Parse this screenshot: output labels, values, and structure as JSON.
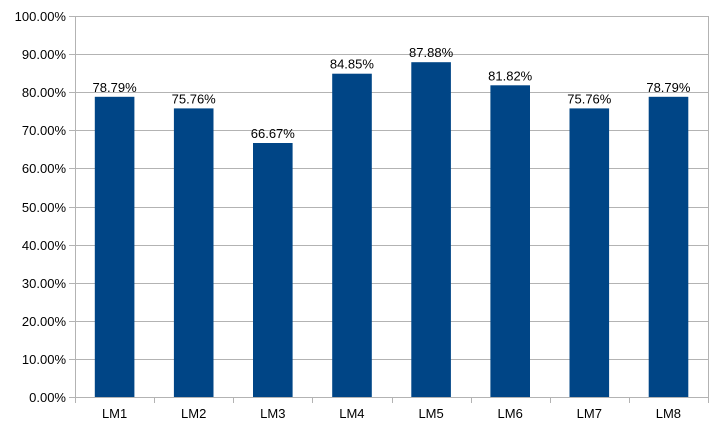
{
  "chart_data": {
    "type": "bar",
    "categories": [
      "LM1",
      "LM2",
      "LM3",
      "LM4",
      "LM5",
      "LM6",
      "LM7",
      "LM8"
    ],
    "values": [
      78.79,
      75.76,
      66.67,
      84.85,
      87.88,
      81.82,
      75.76,
      78.79
    ],
    "data_labels": [
      "78.79%",
      "75.76%",
      "66.67%",
      "84.85%",
      "87.88%",
      "81.82%",
      "75.76%",
      "78.79%"
    ],
    "y_ticks": [
      0,
      10,
      20,
      30,
      40,
      50,
      60,
      70,
      80,
      90,
      100
    ],
    "y_tick_labels": [
      "0.00%",
      "10.00%",
      "20.00%",
      "30.00%",
      "40.00%",
      "50.00%",
      "60.00%",
      "70.00%",
      "80.00%",
      "90.00%",
      "100.00%"
    ],
    "ylim": [
      0,
      100
    ],
    "grid": true,
    "legend": "none",
    "title": "",
    "xlabel": "",
    "ylabel": "",
    "colors": {
      "bar": "#004586",
      "grid": "#b3b3b3",
      "axis": "#b3b3b3",
      "text": "#000000"
    }
  }
}
